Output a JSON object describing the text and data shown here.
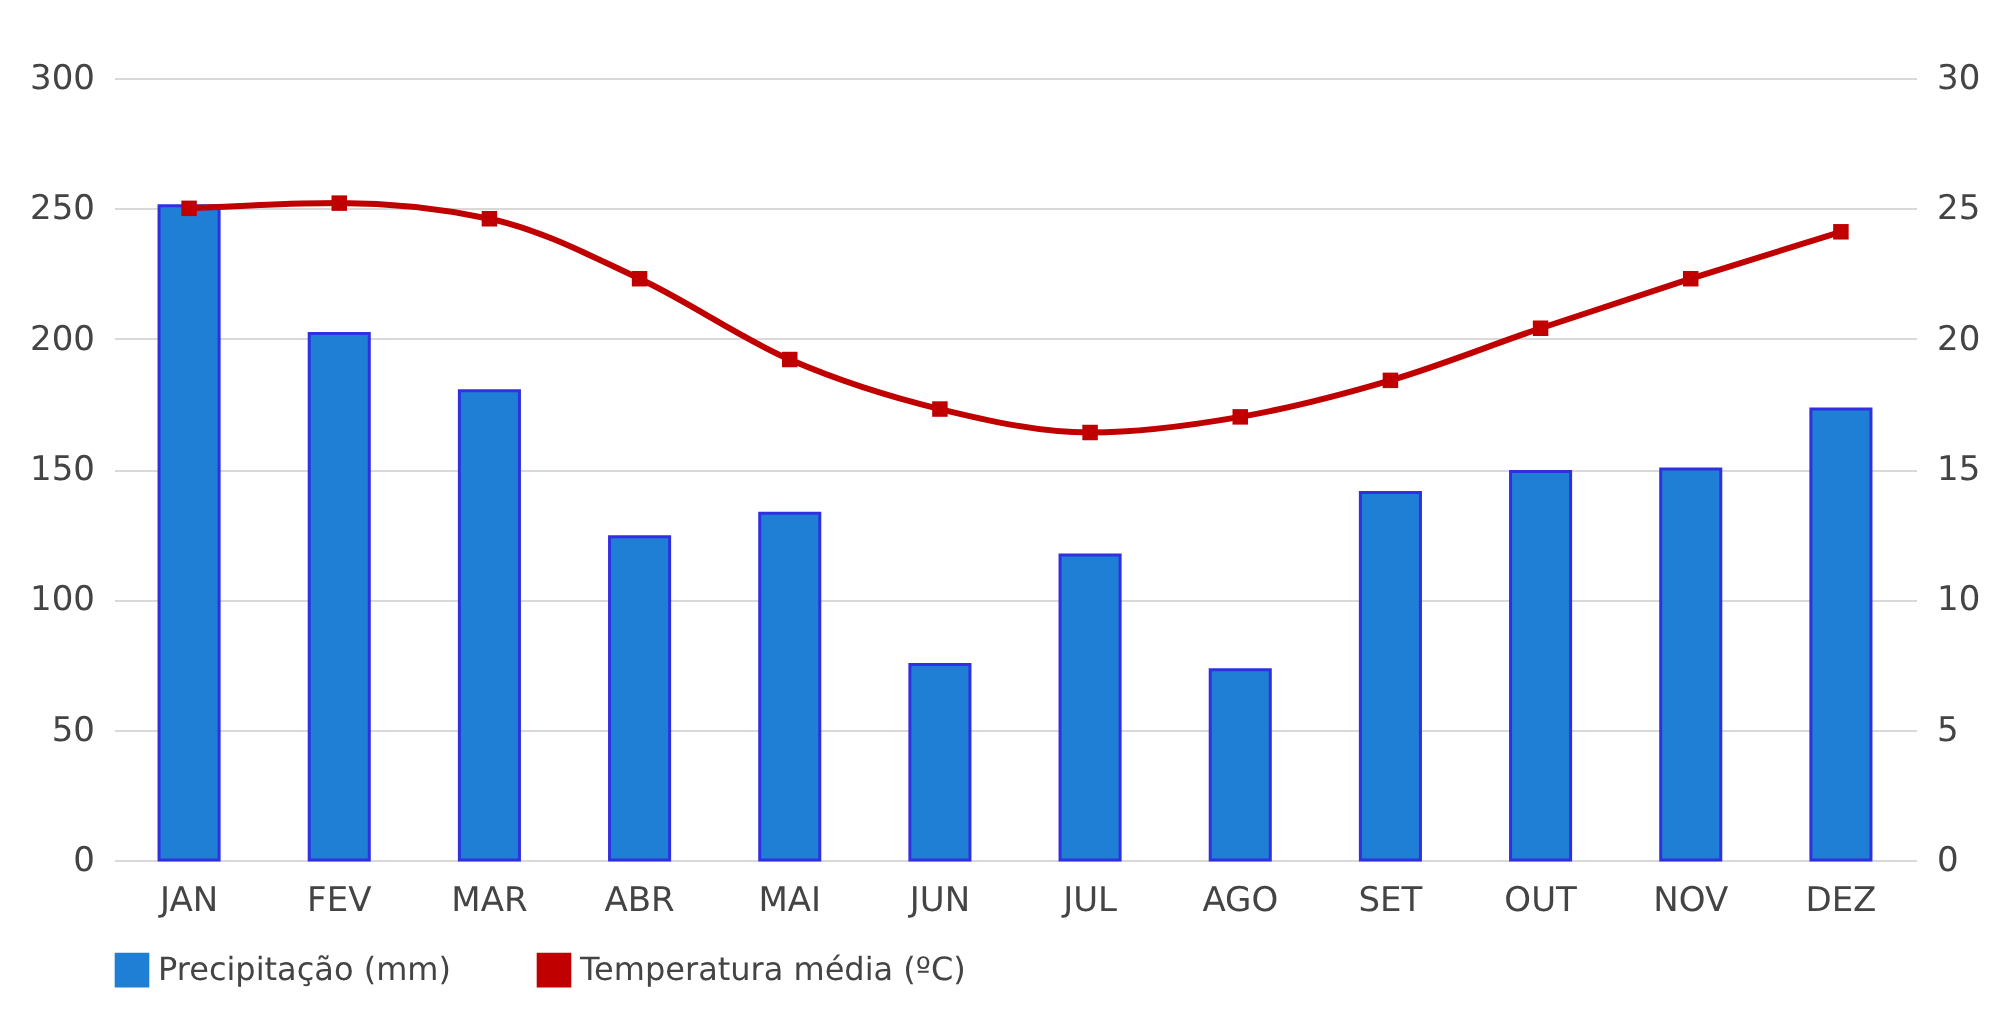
{
  "chart_data": {
    "type": "bar",
    "categories": [
      "JAN",
      "FEV",
      "MAR",
      "ABR",
      "MAI",
      "JUN",
      "JUL",
      "AGO",
      "SET",
      "OUT",
      "NOV",
      "DEZ"
    ],
    "series": [
      {
        "name": "Precipitação (mm)",
        "color": "#1f7fd4",
        "values": [
          251,
          202,
          180,
          124,
          133,
          75,
          117,
          73,
          141,
          149,
          150,
          173
        ]
      },
      {
        "name": "Temperatura média (ºC)",
        "type": "line",
        "axis": "y2",
        "color": "#c00000",
        "values": [
          25.0,
          25.2,
          24.6,
          22.3,
          19.2,
          17.3,
          16.4,
          17.0,
          18.4,
          20.4,
          22.3,
          24.1
        ]
      }
    ],
    "ylim": [
      0,
      300
    ],
    "yticks": [
      0,
      50,
      100,
      150,
      200,
      250,
      300
    ],
    "y2lim": [
      0,
      30
    ],
    "y2ticks": [
      0,
      5,
      10,
      15,
      20,
      25,
      30
    ],
    "grid": "y",
    "legend": "bottom",
    "marker": "square",
    "line_style": "solid"
  }
}
